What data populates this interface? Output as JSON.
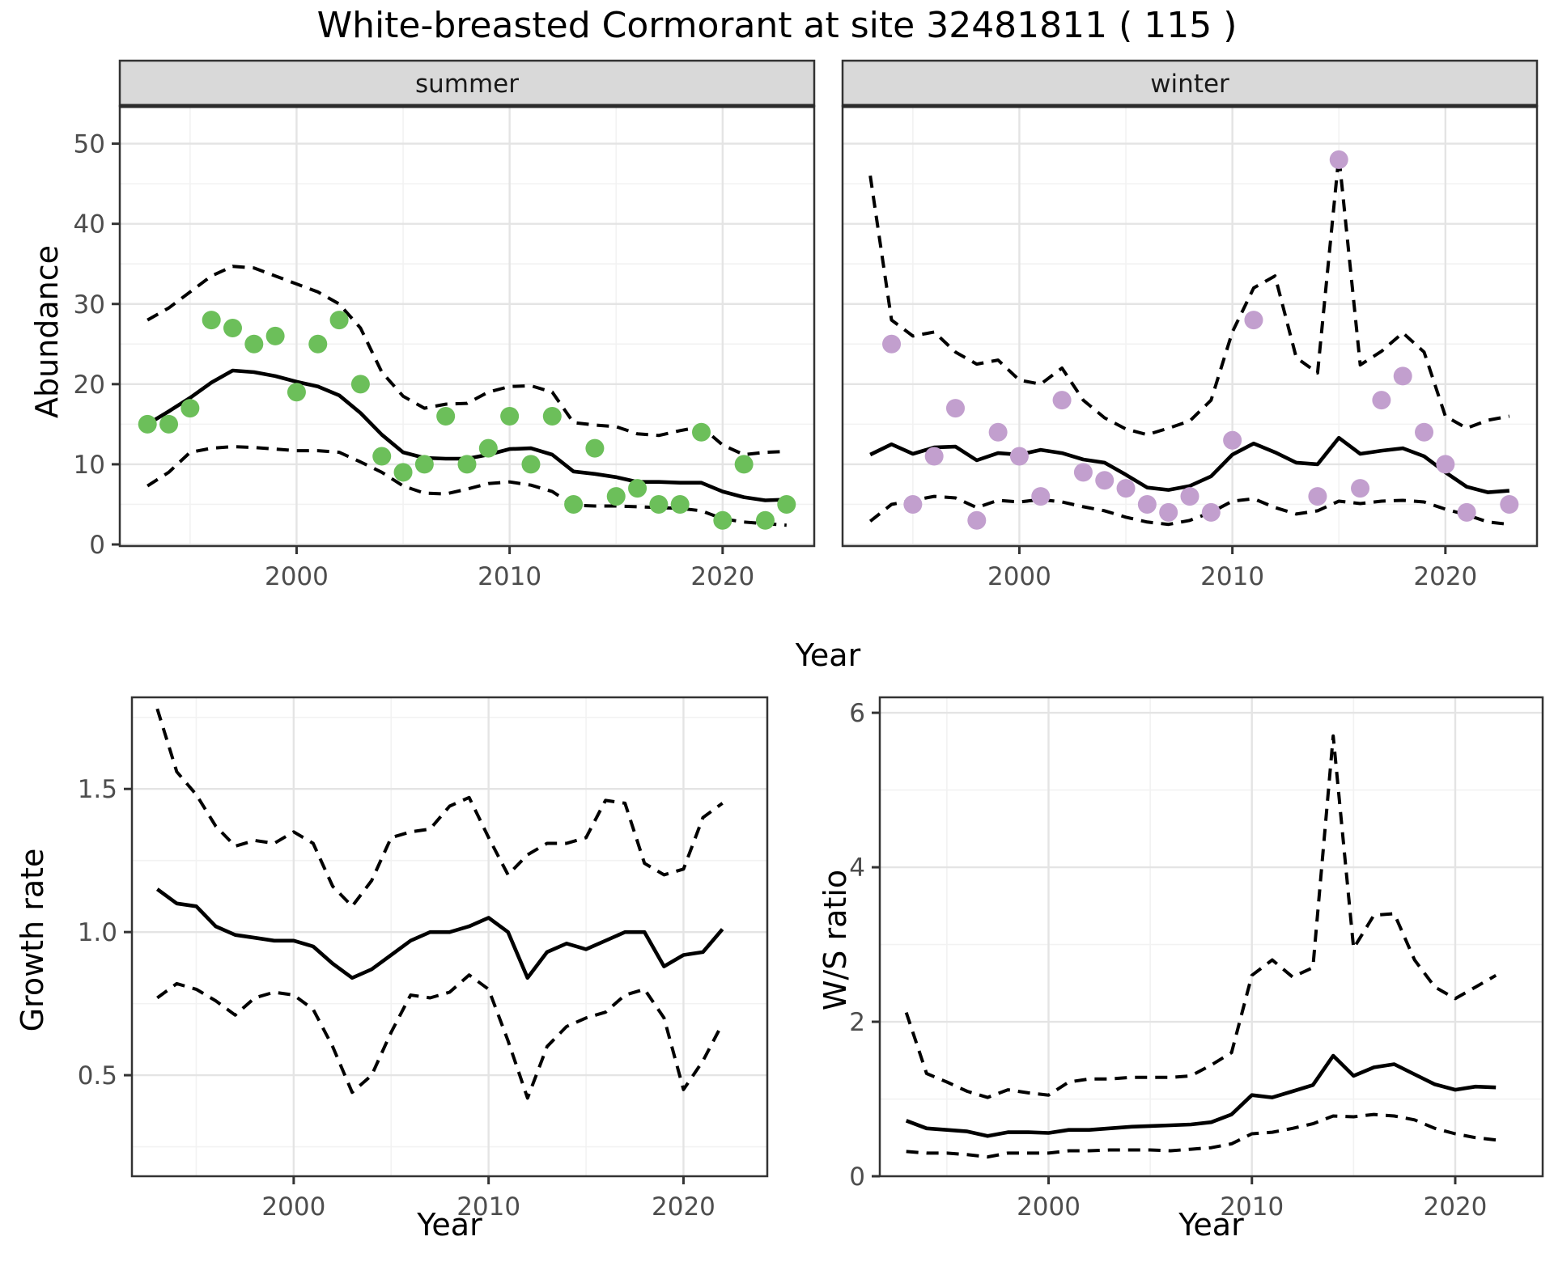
{
  "title": "White-breasted Cormorant at site 32481811 ( 115 )",
  "axis_titles": {
    "x_shared_top": "Year",
    "x_growth": "Year",
    "x_ws": "Year",
    "y_abundance": "Abundance",
    "y_growth": "Growth rate",
    "y_ws": "W/S ratio"
  },
  "colors": {
    "summer_dot": "#6cbf5a",
    "winter_dot": "#c29fce",
    "line": "#000000",
    "grid_major": "#e4e4e4",
    "grid_minor": "#f2f2f2",
    "panel_bg": "#ffffff",
    "panel_border": "#333333",
    "strip_bg": "#d9d9d9",
    "tick_text": "#4d4d4d"
  },
  "chart_data": [
    {
      "id": "abundance-summer",
      "type": "line",
      "facet_label": "summer",
      "xlabel": "Year",
      "ylabel": "Abundance",
      "xlim": [
        1991.7,
        2024.3
      ],
      "ylim": [
        -0.2,
        54.7
      ],
      "x_ticks": [
        2000,
        2010,
        2020
      ],
      "x_minor": [
        1995,
        2005,
        2015
      ],
      "y_ticks": [
        0,
        10,
        20,
        30,
        40,
        50
      ],
      "y_minor": [
        5,
        15,
        25,
        35,
        45
      ],
      "grid": true,
      "legend": "none",
      "x": [
        1993,
        1994,
        1995,
        1996,
        1997,
        1998,
        1999,
        2000,
        2001,
        2002,
        2003,
        2004,
        2005,
        2006,
        2007,
        2008,
        2009,
        2010,
        2011,
        2012,
        2013,
        2014,
        2015,
        2016,
        2017,
        2018,
        2019,
        2020,
        2021,
        2022,
        2023
      ],
      "series": [
        {
          "name": "observed_count",
          "style": "points",
          "color": "#6cbf5a",
          "values": [
            15,
            15,
            17,
            28,
            27,
            25,
            26,
            19,
            25,
            28,
            20,
            11,
            9,
            10,
            16,
            10,
            12,
            16,
            10,
            16,
            5,
            12,
            6,
            7,
            5,
            5,
            14,
            3,
            10,
            3,
            5
          ]
        },
        {
          "name": "model_mean",
          "style": "solid",
          "values": [
            15,
            16.6,
            18.3,
            20.2,
            21.7,
            21.5,
            21,
            20.3,
            19.7,
            18.6,
            16.4,
            13.7,
            11.5,
            10.8,
            10.7,
            10.7,
            11.2,
            11.9,
            12,
            11.2,
            9.1,
            8.8,
            8.4,
            7.8,
            7.8,
            7.7,
            7.7,
            6.6,
            5.9,
            5.5,
            5.6
          ]
        },
        {
          "name": "upper_ci",
          "style": "dashed",
          "values": [
            28,
            29.5,
            31.5,
            33.5,
            34.7,
            34.5,
            33.5,
            32.5,
            31.5,
            30,
            27,
            21.5,
            18.5,
            17,
            17.5,
            17.6,
            19,
            19.7,
            19.8,
            19,
            15.2,
            14.9,
            14.7,
            13.8,
            13.6,
            14.2,
            14.7,
            12.4,
            11.2,
            11.5,
            11.6
          ]
        },
        {
          "name": "lower_ci",
          "style": "dashed",
          "values": [
            7.3,
            9,
            11.5,
            12,
            12.2,
            12.1,
            11.9,
            11.7,
            11.7,
            11.5,
            10.3,
            9,
            7.3,
            6.4,
            6.3,
            6.9,
            7.6,
            7.8,
            7.4,
            6.6,
            4.9,
            4.8,
            4.8,
            4.7,
            4.6,
            4.5,
            4.2,
            3.2,
            2.8,
            2.6,
            2.4
          ]
        }
      ]
    },
    {
      "id": "abundance-winter",
      "type": "line",
      "facet_label": "winter",
      "xlabel": "Year",
      "ylabel": "Abundance",
      "xlim": [
        1991.7,
        2024.3
      ],
      "ylim": [
        -0.2,
        54.7
      ],
      "x_ticks": [
        2000,
        2010,
        2020
      ],
      "x_minor": [
        1995,
        2005,
        2015
      ],
      "y_ticks": [],
      "y_minor": [
        5,
        15,
        25,
        35,
        45
      ],
      "y_grid_major": [
        0,
        10,
        20,
        30,
        40,
        50
      ],
      "grid": true,
      "legend": "none",
      "x": [
        1993,
        1994,
        1995,
        1996,
        1997,
        1998,
        1999,
        2000,
        2001,
        2002,
        2003,
        2004,
        2005,
        2006,
        2007,
        2008,
        2009,
        2010,
        2011,
        2012,
        2013,
        2014,
        2015,
        2016,
        2017,
        2018,
        2019,
        2020,
        2021,
        2022,
        2023
      ],
      "series": [
        {
          "name": "observed_count",
          "style": "points",
          "color": "#c29fce",
          "values": [
            null,
            25,
            5,
            11,
            17,
            3,
            14,
            11,
            6,
            18,
            9,
            8,
            7,
            5,
            4,
            6,
            4,
            13,
            28,
            null,
            null,
            6,
            48,
            7,
            18,
            21,
            14,
            10,
            4,
            null,
            5
          ]
        },
        {
          "name": "model_mean",
          "style": "solid",
          "values": [
            11.2,
            12.5,
            11.3,
            12.1,
            12.2,
            10.5,
            11.4,
            11.2,
            11.8,
            11.4,
            10.6,
            10.2,
            8.7,
            7.1,
            6.8,
            7.3,
            8.5,
            11.2,
            12.6,
            11.5,
            10.2,
            10,
            13.3,
            11.3,
            11.7,
            12,
            11,
            9,
            7.2,
            6.5,
            6.7
          ]
        },
        {
          "name": "upper_ci",
          "style": "dashed",
          "values": [
            46,
            28,
            26,
            26.5,
            24,
            22.5,
            23,
            20.5,
            20,
            22,
            18,
            15.8,
            14.4,
            13.7,
            14.5,
            15.4,
            18,
            26.5,
            32,
            33.5,
            23.3,
            21.4,
            48.5,
            22.4,
            24.1,
            26.4,
            24,
            16,
            14.5,
            15.5,
            16
          ]
        },
        {
          "name": "lower_ci",
          "style": "dashed",
          "values": [
            2.9,
            5,
            5.5,
            6,
            5.8,
            4.6,
            5.5,
            5.3,
            5.6,
            5.3,
            4.7,
            4.2,
            3.4,
            2.8,
            2.5,
            3,
            4,
            5.4,
            5.7,
            4.6,
            3.8,
            4.2,
            5.4,
            5.1,
            5.4,
            5.5,
            5.3,
            4.4,
            3.7,
            2.8,
            2.5
          ]
        }
      ]
    },
    {
      "id": "growth-rate",
      "type": "line",
      "facet_label": null,
      "xlabel": "Year",
      "ylabel": "Growth rate",
      "xlim": [
        1991.7,
        2024.3
      ],
      "ylim": [
        0.147,
        1.82
      ],
      "x_ticks": [
        2000,
        2010,
        2020
      ],
      "x_minor": [
        1995,
        2005,
        2015
      ],
      "y_ticks": [
        0.5,
        1.0,
        1.5
      ],
      "y_tick_labels": [
        "0.5",
        "1.0",
        "1.5"
      ],
      "y_minor": [
        0.25,
        0.75,
        1.25,
        1.75
      ],
      "grid": true,
      "legend": "none",
      "x": [
        1993,
        1994,
        1995,
        1996,
        1997,
        1998,
        1999,
        2000,
        2001,
        2002,
        2003,
        2004,
        2005,
        2006,
        2007,
        2008,
        2009,
        2010,
        2011,
        2012,
        2013,
        2014,
        2015,
        2016,
        2017,
        2018,
        2019,
        2020,
        2021,
        2022
      ],
      "series": [
        {
          "name": "model_mean",
          "style": "solid",
          "values": [
            1.15,
            1.1,
            1.09,
            1.02,
            0.99,
            0.98,
            0.97,
            0.97,
            0.95,
            0.89,
            0.84,
            0.87,
            0.92,
            0.97,
            1.0,
            1.0,
            1.02,
            1.05,
            1.0,
            0.84,
            0.93,
            0.96,
            0.94,
            0.97,
            1.0,
            1.0,
            0.88,
            0.92,
            0.93,
            1.01
          ]
        },
        {
          "name": "upper_ci",
          "style": "dashed",
          "values": [
            1.78,
            1.56,
            1.48,
            1.37,
            1.3,
            1.32,
            1.31,
            1.35,
            1.31,
            1.16,
            1.09,
            1.18,
            1.33,
            1.35,
            1.36,
            1.44,
            1.47,
            1.33,
            1.2,
            1.27,
            1.31,
            1.31,
            1.33,
            1.46,
            1.45,
            1.24,
            1.2,
            1.22,
            1.4,
            1.45
          ]
        },
        {
          "name": "lower_ci",
          "style": "dashed",
          "values": [
            0.77,
            0.82,
            0.8,
            0.76,
            0.71,
            0.77,
            0.79,
            0.78,
            0.73,
            0.6,
            0.44,
            0.5,
            0.65,
            0.78,
            0.77,
            0.79,
            0.85,
            0.8,
            0.62,
            0.42,
            0.6,
            0.67,
            0.7,
            0.72,
            0.78,
            0.8,
            0.7,
            0.45,
            0.55,
            0.68
          ]
        }
      ]
    },
    {
      "id": "ws-ratio",
      "type": "line",
      "facet_label": null,
      "xlabel": "Year",
      "ylabel": "W/S ratio",
      "xlim": [
        1991.7,
        2024.3
      ],
      "ylim": [
        0,
        6.2
      ],
      "x_ticks": [
        2000,
        2010,
        2020
      ],
      "x_minor": [
        1995,
        2005,
        2015
      ],
      "y_ticks": [
        0,
        2,
        4,
        6
      ],
      "y_tick_labels": [
        "0",
        "2",
        "4",
        "6"
      ],
      "y_minor": [
        1,
        3,
        5
      ],
      "grid": true,
      "legend": "none",
      "x": [
        1993,
        1994,
        1995,
        1996,
        1997,
        1998,
        1999,
        2000,
        2001,
        2002,
        2003,
        2004,
        2005,
        2006,
        2007,
        2008,
        2009,
        2010,
        2011,
        2012,
        2013,
        2014,
        2015,
        2016,
        2017,
        2018,
        2019,
        2020,
        2021,
        2022
      ],
      "series": [
        {
          "name": "model_mean",
          "style": "solid",
          "values": [
            0.72,
            0.62,
            0.6,
            0.58,
            0.52,
            0.57,
            0.57,
            0.56,
            0.6,
            0.6,
            0.62,
            0.64,
            0.65,
            0.66,
            0.67,
            0.7,
            0.8,
            1.05,
            1.02,
            1.1,
            1.18,
            1.56,
            1.3,
            1.41,
            1.45,
            1.32,
            1.19,
            1.12,
            1.16,
            1.15
          ]
        },
        {
          "name": "upper_ci",
          "style": "dashed",
          "values": [
            2.12,
            1.33,
            1.22,
            1.1,
            1.02,
            1.12,
            1.08,
            1.05,
            1.22,
            1.26,
            1.26,
            1.28,
            1.28,
            1.28,
            1.3,
            1.44,
            1.6,
            2.6,
            2.8,
            2.58,
            2.7,
            5.7,
            2.95,
            3.38,
            3.4,
            2.8,
            2.45,
            2.3,
            2.45,
            2.6
          ]
        },
        {
          "name": "lower_ci",
          "style": "dashed",
          "values": [
            0.32,
            0.3,
            0.3,
            0.28,
            0.25,
            0.3,
            0.3,
            0.3,
            0.33,
            0.33,
            0.34,
            0.34,
            0.34,
            0.33,
            0.35,
            0.37,
            0.42,
            0.55,
            0.57,
            0.62,
            0.68,
            0.78,
            0.77,
            0.8,
            0.78,
            0.73,
            0.62,
            0.55,
            0.5,
            0.47
          ]
        }
      ]
    }
  ]
}
